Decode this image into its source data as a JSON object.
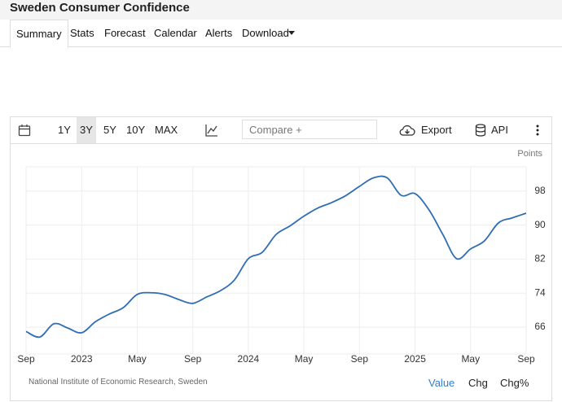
{
  "header": {
    "title": "Sweden Consumer Confidence"
  },
  "tabs": [
    "Summary",
    "Stats",
    "Forecast",
    "Calendar",
    "Alerts",
    "Download"
  ],
  "toolbar": {
    "ranges": [
      "1Y",
      "3Y",
      "5Y",
      "10Y",
      "MAX"
    ],
    "compare": "Compare +",
    "export": "Export",
    "api": "API"
  },
  "footer": {
    "source": "National Institute of Economic Research, Sweden",
    "modes": [
      "Value",
      "Chg",
      "Chg%"
    ]
  },
  "chart_data": {
    "type": "line",
    "y_label": "Points",
    "x": [
      "2022-09",
      "2022-10",
      "2022-11",
      "2022-12",
      "2023-01",
      "2023-02",
      "2023-03",
      "2023-04",
      "2023-05",
      "2023-06",
      "2023-07",
      "2023-08",
      "2023-09",
      "2023-10",
      "2023-11",
      "2023-12",
      "2024-01",
      "2024-02",
      "2024-03",
      "2024-04",
      "2024-05",
      "2024-06",
      "2024-07",
      "2024-08",
      "2024-09",
      "2024-10",
      "2024-11",
      "2024-12",
      "2025-01",
      "2025-02",
      "2025-03",
      "2025-04",
      "2025-05",
      "2025-06",
      "2025-07",
      "2025-08",
      "2025-09"
    ],
    "series": [
      {
        "name": "Consumer Confidence",
        "color": "#2f6db5",
        "values": [
          65.0,
          63.7,
          66.8,
          65.8,
          64.7,
          67.3,
          69.1,
          70.6,
          73.7,
          74.1,
          73.7,
          72.5,
          71.6,
          73.1,
          74.6,
          77.1,
          82.1,
          83.6,
          87.8,
          89.8,
          92.1,
          94.0,
          95.3,
          96.9,
          99.1,
          101.1,
          101.1,
          97.0,
          97.4,
          93.6,
          87.8,
          82.1,
          84.4,
          86.3,
          90.5,
          91.7,
          92.8
        ]
      }
    ],
    "xlim": [
      "2022-09",
      "2025-09"
    ],
    "xticks": [
      {
        "value": "2022-09",
        "label": "Sep"
      },
      {
        "value": "2023-01",
        "label": "2023"
      },
      {
        "value": "2023-05",
        "label": "May"
      },
      {
        "value": "2023-09",
        "label": "Sep"
      },
      {
        "value": "2024-01",
        "label": "2024"
      },
      {
        "value": "2024-05",
        "label": "May"
      },
      {
        "value": "2024-09",
        "label": "Sep"
      },
      {
        "value": "2025-01",
        "label": "2025"
      },
      {
        "value": "2025-05",
        "label": "May"
      },
      {
        "value": "2025-09",
        "label": "Sep"
      }
    ],
    "ylim": [
      59.7,
      103.7
    ],
    "yticks": [
      66,
      74,
      82,
      90,
      98
    ],
    "grid": true
  }
}
